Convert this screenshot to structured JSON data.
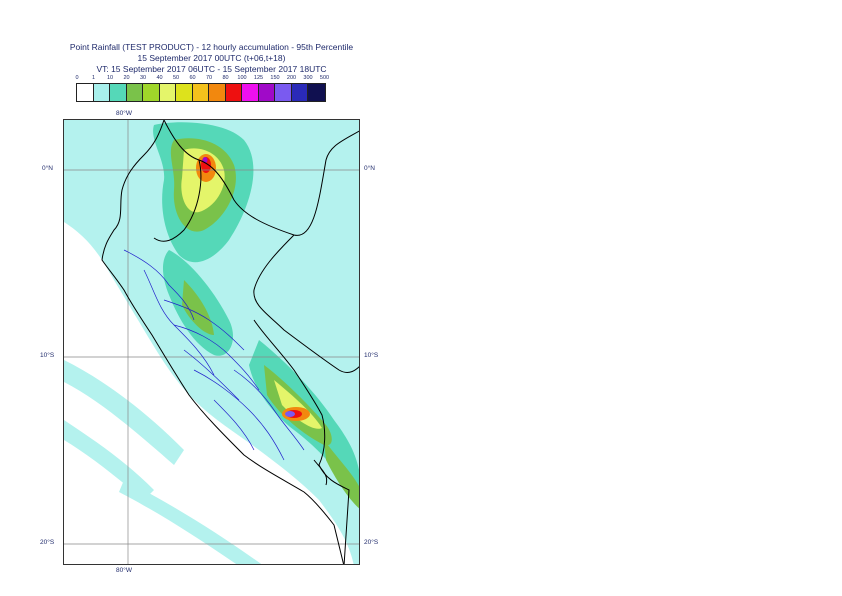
{
  "title": {
    "line1": "Point Rainfall (TEST PRODUCT) - 12 hourly accumulation - 95th Percentile",
    "line2": "15 September 2017 00UTC (t+06,t+18)",
    "line3": "VT: 15 September 2017 06UTC - 15 September 2017 18UTC"
  },
  "legend": {
    "labels": [
      "0",
      "1",
      "10",
      "20",
      "30",
      "40",
      "50",
      "60",
      "70",
      "80",
      "100",
      "125",
      "150",
      "200",
      "300",
      "500"
    ],
    "colors": [
      "#ffffff",
      "#a8f0ec",
      "#55d8b8",
      "#7ac24a",
      "#a0d62a",
      "#e4f56a",
      "#dde21c",
      "#f4c21c",
      "#f2880e",
      "#ee1010",
      "#ee10ee",
      "#a00ac8",
      "#7a5af0",
      "#2a2ab8",
      "#101050"
    ]
  },
  "map": {
    "lon_label_top": "80°W",
    "lon_label_bottom": "80°W",
    "lat_labels_left": [
      "0°N",
      "10°S",
      "20°S"
    ],
    "lat_labels_right": [
      "0°N",
      "10°S",
      "20°S"
    ],
    "colors": {
      "background": "#ffffff",
      "ocean_light": "#b4f2ee",
      "light_rain": "#a8f0ec",
      "moderate_rain": "#55d8b8",
      "heavy_rain": "#7ac24a",
      "very_heavy": "#e4f56a",
      "intense": "#f2880e",
      "extreme": "#ee1010",
      "peak": "#a00ac8",
      "border": "#000000",
      "admin_border": "#2222cc",
      "grid": "#888888"
    }
  }
}
